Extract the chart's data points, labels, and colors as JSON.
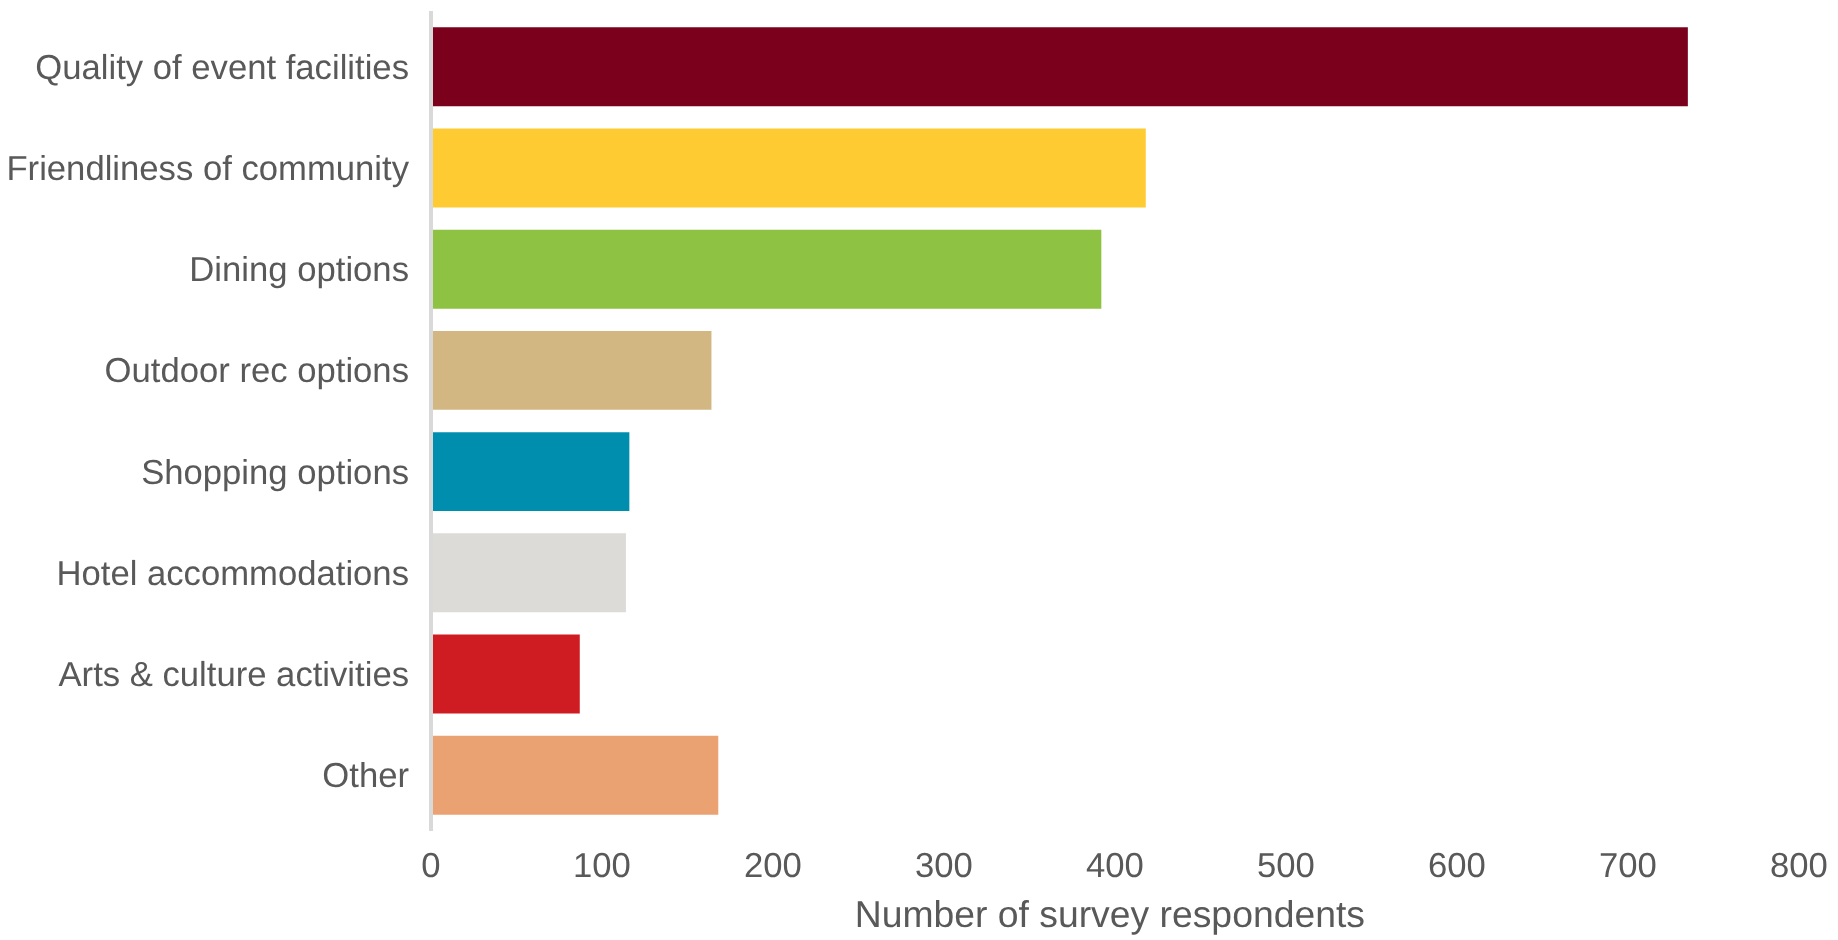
{
  "chart_data": {
    "type": "bar",
    "orientation": "horizontal",
    "xlabel": "Number  of survey respondents",
    "categories": [
      "Quality of event facilities",
      "Friendliness of community",
      "Dining options",
      "Outdoor rec options",
      "Shopping options",
      "Hotel accommodations",
      "Arts & culture activities",
      "Other"
    ],
    "values": [
      735,
      418,
      392,
      164,
      116,
      114,
      87,
      168
    ],
    "colors": [
      "#7a001c",
      "#ffcb33",
      "#8dc243",
      "#d2b783",
      "#008eaf",
      "#dddbd7",
      "#cf1c22",
      "#eba272"
    ],
    "xlim": [
      0,
      800
    ],
    "xticks": [
      0,
      100,
      200,
      300,
      400,
      500,
      600,
      700,
      800
    ],
    "grid": false
  }
}
